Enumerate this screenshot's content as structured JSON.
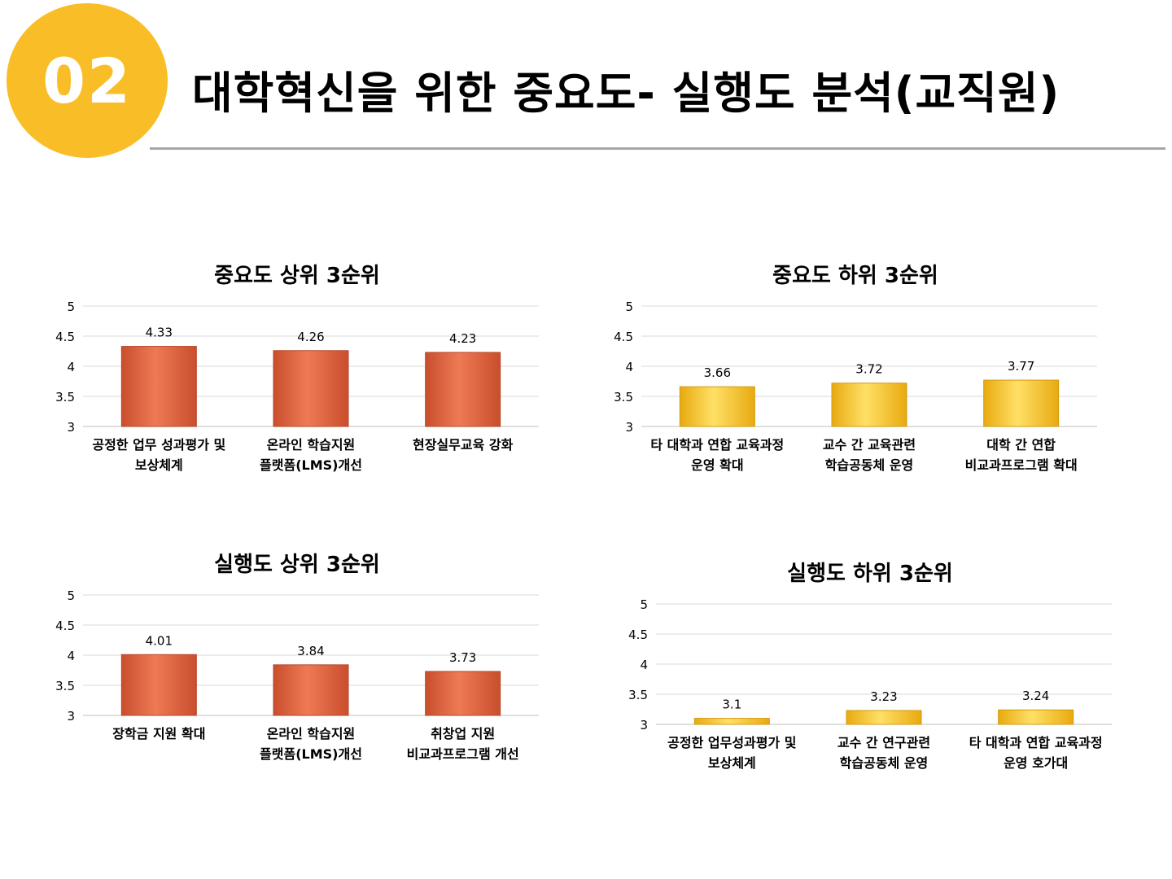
{
  "header": {
    "badge": "02",
    "title": "대학혁신을 위한 중요도- 실행도 분석(교직원)"
  },
  "colors": {
    "badge": "#f9be27",
    "orange_bar": "#e2623f",
    "yellow_bar": "#fcc526",
    "rule": "#a6a6a6"
  },
  "chart_data": [
    {
      "type": "bar",
      "title": "중요도 상위 3순위",
      "categories": [
        "공정한 업무 성과평가 및\n보상체계",
        "온라인 학습지원\n플랫폼(LMS)개선",
        "현장실무교육 강화"
      ],
      "values": [
        4.33,
        4.26,
        4.23
      ],
      "value_labels": [
        "4.33",
        "4.26",
        "4.23"
      ],
      "ylim": [
        3,
        5
      ],
      "yticks": [
        "3",
        "3.5",
        "4",
        "4.5",
        "5"
      ],
      "grid": true,
      "color": "orange"
    },
    {
      "type": "bar",
      "title": "중요도 하위 3순위",
      "categories": [
        "타 대학과 연합 교육과정\n운영 확대",
        "교수 간 교육관련\n학습공동체 운영",
        "대학 간 연합\n비교과프로그램 확대"
      ],
      "values": [
        3.66,
        3.72,
        3.77
      ],
      "value_labels": [
        "3.66",
        "3.72",
        "3.77"
      ],
      "ylim": [
        3,
        5
      ],
      "yticks": [
        "3",
        "3.5",
        "4",
        "4.5",
        "5"
      ],
      "grid": true,
      "color": "yellow"
    },
    {
      "type": "bar",
      "title": "실행도 상위 3순위",
      "categories": [
        "장학금 지원 확대",
        "온라인 학습지원\n플랫폼(LMS)개선",
        "취창업 지원\n비교과프로그램 개선"
      ],
      "values": [
        4.01,
        3.84,
        3.73
      ],
      "value_labels": [
        "4.01",
        "3.84",
        "3.73"
      ],
      "ylim": [
        3,
        5
      ],
      "yticks": [
        "3",
        "3.5",
        "4",
        "4.5",
        "5"
      ],
      "grid": true,
      "color": "orange"
    },
    {
      "type": "bar",
      "title": "실행도 하위 3순위",
      "categories": [
        "공정한 업무성과평가 및\n보상체계",
        "교수 간 연구관련\n학습공동체 운영",
        "타 대학과 연합 교육과정\n운영 호가대"
      ],
      "values": [
        3.1,
        3.23,
        3.24
      ],
      "value_labels": [
        "3.1",
        "3.23",
        "3.24"
      ],
      "ylim": [
        3,
        5
      ],
      "yticks": [
        "3",
        "3.5",
        "4",
        "4.5",
        "5"
      ],
      "grid": true,
      "color": "yellow"
    }
  ]
}
